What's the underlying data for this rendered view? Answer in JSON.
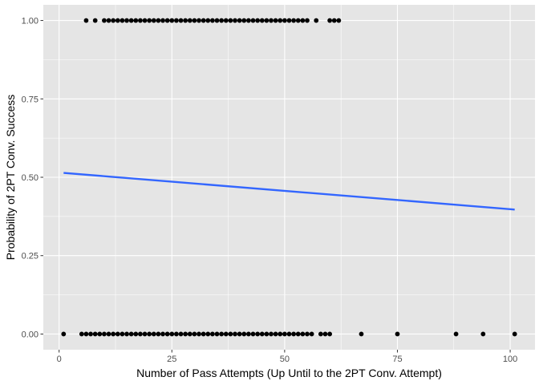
{
  "chart_data": {
    "type": "scatter",
    "xlabel": "Number of Pass Attempts (Up Until to the 2PT Conv. Attempt)",
    "ylabel": "Probability of 2PT Conv. Success",
    "xlim": [
      -3.5,
      105.5
    ],
    "ylim": [
      -0.05,
      1.05
    ],
    "x_ticks": [
      0,
      25,
      50,
      75,
      100
    ],
    "x_tick_labels": [
      "0",
      "25",
      "50",
      "75",
      "100"
    ],
    "y_ticks": [
      0,
      0.25,
      0.5,
      0.75,
      1.0
    ],
    "y_tick_labels": [
      "0.00",
      "0.25",
      "0.50",
      "0.75",
      "1.00"
    ],
    "grid": true,
    "panel_background": "#e5e5e5",
    "grid_color": "#ffffff",
    "point_color": "#000000",
    "line_color": "#3366ff",
    "success_x": [
      6,
      8,
      10,
      11,
      12,
      13,
      14,
      15,
      16,
      17,
      18,
      19,
      20,
      21,
      22,
      23,
      24,
      25,
      26,
      27,
      28,
      29,
      30,
      31,
      32,
      33,
      34,
      35,
      36,
      37,
      38,
      39,
      40,
      41,
      42,
      43,
      44,
      45,
      46,
      47,
      48,
      49,
      50,
      51,
      52,
      53,
      54,
      55,
      57,
      60,
      61,
      62
    ],
    "failure_x": [
      1,
      5,
      6,
      7,
      8,
      9,
      10,
      11,
      12,
      13,
      14,
      15,
      16,
      17,
      18,
      19,
      20,
      21,
      22,
      23,
      24,
      25,
      26,
      27,
      28,
      29,
      30,
      31,
      32,
      33,
      34,
      35,
      36,
      37,
      38,
      39,
      40,
      41,
      42,
      43,
      44,
      45,
      46,
      47,
      48,
      49,
      50,
      51,
      52,
      53,
      54,
      55,
      56,
      58,
      59,
      60,
      67,
      75,
      88,
      94,
      101
    ],
    "fit_line": {
      "x": [
        1,
        101
      ],
      "y": [
        0.514,
        0.397
      ]
    }
  }
}
